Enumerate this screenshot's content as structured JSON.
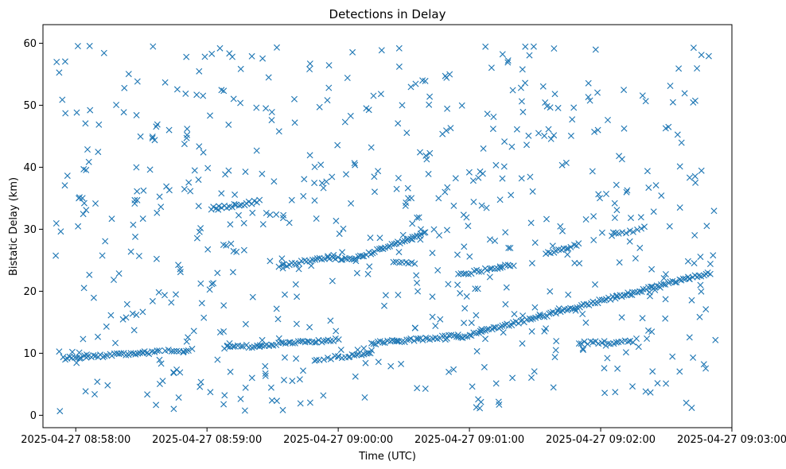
{
  "chart_data": {
    "type": "scatter",
    "title": "Detections in Delay",
    "xlabel": "Time (UTC)",
    "ylabel": "Bistatic Delay (km)",
    "marker": "x",
    "color": "#1f77b4",
    "xlim_seconds": [
      -15,
      300
    ],
    "ylim": [
      -2,
      63
    ],
    "x_tick_values_seconds": [
      0,
      60,
      120,
      180,
      240,
      300
    ],
    "x_tick_labels": [
      "2025-04-27 08:58:00",
      "2025-04-27 08:59:00",
      "2025-04-27 09:00:00",
      "2025-04-27 09:01:00",
      "2025-04-27 09:02:00",
      "2025-04-27 09:03:00"
    ],
    "y_ticks": [
      0,
      10,
      20,
      30,
      40,
      50,
      60
    ],
    "x_origin": "2025-04-27 08:58:00",
    "data_range_seconds": [
      -10,
      293
    ],
    "tracks": [
      {
        "t_start": -6,
        "t_end": 38,
        "delay_start": 9.2,
        "delay_end": 10.2,
        "n": 42
      },
      {
        "t_start": 41,
        "t_end": 53,
        "delay_start": 10.3,
        "delay_end": 10.5,
        "n": 10
      },
      {
        "t_start": 68,
        "t_end": 84,
        "delay_start": 11.0,
        "delay_end": 11.2,
        "n": 14
      },
      {
        "t_start": 84,
        "t_end": 120,
        "delay_start": 11.3,
        "delay_end": 12.2,
        "n": 34
      },
      {
        "t_start": 110,
        "t_end": 125,
        "delay_start": 9.1,
        "delay_end": 9.5,
        "n": 10
      },
      {
        "t_start": 125,
        "t_end": 135,
        "delay_start": 9.6,
        "delay_end": 10.2,
        "n": 10
      },
      {
        "t_start": 135,
        "t_end": 175,
        "delay_start": 11.6,
        "delay_end": 12.8,
        "n": 38
      },
      {
        "t_start": 175,
        "t_end": 290,
        "delay_start": 12.5,
        "delay_end": 23.0,
        "n": 115
      },
      {
        "t_start": 230,
        "t_end": 255,
        "delay_start": 11.7,
        "delay_end": 11.8,
        "n": 20
      },
      {
        "t_start": 62,
        "t_end": 84,
        "delay_start": 33.3,
        "delay_end": 34.5,
        "n": 20
      },
      {
        "t_start": 93,
        "t_end": 115,
        "delay_start": 24.0,
        "delay_end": 25.5,
        "n": 20
      },
      {
        "t_start": 115,
        "t_end": 128,
        "delay_start": 25.5,
        "delay_end": 25.1,
        "n": 14
      },
      {
        "t_start": 128,
        "t_end": 160,
        "delay_start": 25.3,
        "delay_end": 29.5,
        "n": 34
      },
      {
        "t_start": 145,
        "t_end": 155,
        "delay_start": 24.5,
        "delay_end": 24.6,
        "n": 8
      },
      {
        "t_start": 175,
        "t_end": 200,
        "delay_start": 22.7,
        "delay_end": 24.3,
        "n": 22
      },
      {
        "t_start": 215,
        "t_end": 230,
        "delay_start": 26.0,
        "delay_end": 27.5,
        "n": 14
      },
      {
        "t_start": 245,
        "t_end": 260,
        "delay_start": 29.0,
        "delay_end": 30.2,
        "n": 10
      }
    ],
    "clutter": {
      "count": 620,
      "delay_range": [
        0.5,
        59.7
      ],
      "note": "uniformly scattered false detections across the full time and delay range"
    }
  }
}
